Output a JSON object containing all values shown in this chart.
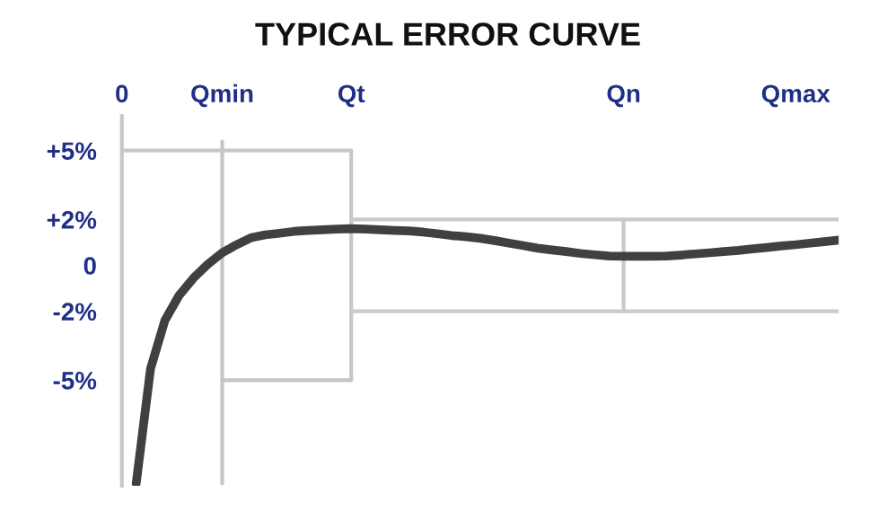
{
  "chart_data": {
    "type": "line",
    "title": "TYPICAL ERROR CURVE",
    "categories": [
      "0",
      null,
      null,
      null,
      null,
      null,
      null,
      "Qmin",
      null,
      null,
      null,
      null,
      null,
      null,
      null,
      null,
      "Qt",
      null,
      null,
      null,
      null,
      null,
      null,
      null,
      null,
      null,
      null,
      null,
      null,
      null,
      null,
      null,
      null,
      null,
      null,
      "Qn",
      null,
      null,
      null,
      null,
      null,
      null,
      null,
      null,
      null,
      null,
      null,
      "Qmax",
      null,
      null,
      null
    ],
    "ylim": [
      -9.6,
      6.5
    ],
    "yticks": [
      {
        "value": 5,
        "label": "+5%"
      },
      {
        "value": 2,
        "label": "+2%"
      },
      {
        "value": 0,
        "label": "0"
      },
      {
        "value": -2,
        "label": "-2%"
      },
      {
        "value": -5,
        "label": "-5%"
      }
    ],
    "marker": "none",
    "line_style": "solid",
    "series": [
      {
        "color": "#c6c6c6",
        "x": [
          "Qmin",
          "Qmin"
        ],
        "values": [
          5.4,
          -9.5
        ]
      },
      {
        "color": "#c7c7c7",
        "x": [
          "Qt",
          "Qt"
        ],
        "values": [
          5,
          -5
        ]
      },
      {
        "color": "#c9c9c9",
        "x": [
          "Qn",
          "Qn"
        ],
        "values": [
          2,
          -2
        ]
      },
      {
        "color": "#c8c8c8",
        "values": [
          5,
          5,
          5,
          5,
          5,
          5,
          5,
          5,
          5,
          5,
          5,
          5,
          5,
          5,
          5,
          5,
          5,
          null,
          null,
          null,
          null,
          null,
          null,
          null,
          null,
          null,
          null,
          null,
          null,
          null,
          null,
          null,
          null,
          null,
          null,
          null,
          null,
          null,
          null,
          null,
          null,
          null,
          null,
          null,
          null,
          null,
          null,
          null,
          null,
          null,
          null
        ]
      },
      {
        "color": "#cacaca",
        "values": [
          null,
          null,
          null,
          null,
          null,
          null,
          null,
          null,
          null,
          null,
          null,
          null,
          null,
          null,
          null,
          null,
          2,
          2,
          2,
          2,
          2,
          2,
          2,
          2,
          2,
          2,
          2,
          2,
          2,
          2,
          2,
          2,
          2,
          2,
          2,
          2,
          2,
          2,
          2,
          2,
          2,
          2,
          2,
          2,
          2,
          2,
          2,
          2,
          2,
          2,
          2
        ]
      },
      {
        "color": "#c5c5c5",
        "values": [
          null,
          null,
          null,
          null,
          null,
          null,
          null,
          -5,
          -5,
          -5,
          -5,
          -5,
          -5,
          -5,
          -5,
          -5,
          -5,
          null,
          null,
          null,
          null,
          null,
          null,
          null,
          null,
          null,
          null,
          null,
          null,
          null,
          null,
          null,
          null,
          null,
          null,
          null,
          null,
          null,
          null,
          null,
          null,
          null,
          null,
          null,
          null,
          null,
          null,
          null,
          null,
          null,
          null
        ]
      },
      {
        "color": "#cbcbcb",
        "values": [
          null,
          null,
          null,
          null,
          null,
          null,
          null,
          null,
          null,
          null,
          null,
          null,
          null,
          null,
          null,
          null,
          -2,
          -2,
          -2,
          -2,
          -2,
          -2,
          -2,
          -2,
          -2,
          -2,
          -2,
          -2,
          -2,
          -2,
          -2,
          -2,
          -2,
          -2,
          -2,
          -2,
          -2,
          -2,
          -2,
          -2,
          -2,
          -2,
          -2,
          -2,
          -2,
          -2,
          -2,
          -2,
          -2,
          -2,
          -2
        ]
      },
      {
        "color": "#404040",
        "values": [
          null,
          -9.5,
          -4.5,
          -2.4,
          -1.3,
          -0.55,
          0.05,
          0.55,
          0.9,
          1.2,
          1.33,
          1.4,
          1.48,
          1.52,
          1.55,
          1.58,
          1.6,
          1.58,
          1.55,
          1.52,
          1.5,
          1.45,
          1.38,
          1.3,
          1.25,
          1.18,
          1.08,
          0.97,
          0.86,
          0.75,
          0.67,
          0.6,
          0.52,
          0.46,
          0.41,
          0.4,
          0.4,
          0.4,
          0.41,
          0.45,
          0.5,
          0.55,
          0.6,
          0.65,
          0.72,
          0.78,
          0.85,
          0.9,
          0.97,
          1.03,
          1.1
        ]
      }
    ]
  }
}
